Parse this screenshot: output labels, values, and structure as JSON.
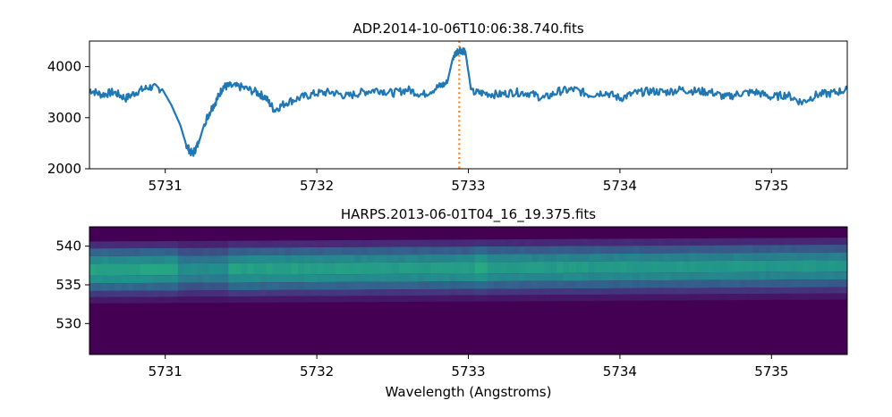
{
  "figure": {
    "xlabel": "Wavelength (Angstroms)"
  },
  "colors": {
    "line": "#1f77b4",
    "marker": "#ff7f0e",
    "bg_dark": "#440154",
    "heat_low": "#46337e",
    "heat_mid": "#31688e",
    "heat_high": "#21918c",
    "heat_peak": "#29af7f"
  },
  "chart_data": [
    {
      "type": "line",
      "title": "ADP.2014-10-06T10:06:38.740.fits",
      "xlabel": "",
      "ylabel": "",
      "xlim": [
        5730.5,
        5735.5
      ],
      "ylim": [
        2000,
        4500
      ],
      "xticks": [
        5731,
        5732,
        5733,
        5734,
        5735
      ],
      "yticks": [
        2000,
        3000,
        4000
      ],
      "vline_x": 5732.94,
      "series": [
        {
          "name": "flux",
          "x": [
            5730.5,
            5730.58,
            5730.66,
            5730.74,
            5730.82,
            5730.9,
            5730.98,
            5731.04,
            5731.1,
            5731.14,
            5731.18,
            5731.22,
            5731.26,
            5731.3,
            5731.34,
            5731.38,
            5731.42,
            5731.5,
            5731.6,
            5731.66,
            5731.72,
            5731.8,
            5731.9,
            5732.0,
            5732.1,
            5732.2,
            5732.3,
            5732.4,
            5732.5,
            5732.6,
            5732.7,
            5732.8,
            5732.86,
            5732.9,
            5732.94,
            5732.98,
            5733.02,
            5733.1,
            5733.2,
            5733.3,
            5733.4,
            5733.5,
            5733.6,
            5733.7,
            5733.8,
            5733.9,
            5734.0,
            5734.1,
            5734.2,
            5734.3,
            5734.4,
            5734.5,
            5734.6,
            5734.7,
            5734.8,
            5734.9,
            5735.0,
            5735.1,
            5735.2,
            5735.3,
            5735.4,
            5735.5
          ],
          "y": [
            3550,
            3450,
            3500,
            3380,
            3520,
            3600,
            3560,
            3250,
            2850,
            2450,
            2280,
            2500,
            2900,
            3150,
            3350,
            3600,
            3620,
            3600,
            3500,
            3400,
            3150,
            3300,
            3400,
            3480,
            3500,
            3420,
            3500,
            3550,
            3480,
            3550,
            3450,
            3600,
            3680,
            4200,
            4340,
            4300,
            3500,
            3480,
            3450,
            3500,
            3480,
            3380,
            3520,
            3550,
            3450,
            3500,
            3380,
            3480,
            3520,
            3500,
            3550,
            3520,
            3500,
            3400,
            3480,
            3500,
            3400,
            3450,
            3300,
            3450,
            3480,
            3550
          ]
        }
      ]
    },
    {
      "type": "heatmap",
      "title": "HARPS.2013-06-01T04_16_19.375.fits",
      "xlabel": "Wavelength (Angstroms)",
      "ylabel": "",
      "xlim": [
        5730.5,
        5735.5
      ],
      "ylim": [
        526,
        542.5
      ],
      "xticks": [
        5731,
        5732,
        5733,
        5734,
        5735
      ],
      "yticks": [
        530,
        535,
        540
      ],
      "rows": [
        {
          "y_from": 539.7,
          "y_to": 540.6,
          "intensity": 0.22
        },
        {
          "y_from": 538.7,
          "y_to": 539.7,
          "intensity": 0.48
        },
        {
          "y_from": 537.7,
          "y_to": 538.7,
          "intensity": 0.72
        },
        {
          "y_from": 536.2,
          "y_to": 537.7,
          "intensity": 0.9
        },
        {
          "y_from": 535.2,
          "y_to": 536.2,
          "intensity": 0.75
        },
        {
          "y_from": 534.2,
          "y_to": 535.2,
          "intensity": 0.5
        },
        {
          "y_from": 533.4,
          "y_to": 534.2,
          "intensity": 0.28
        },
        {
          "y_from": 532.6,
          "y_to": 533.4,
          "intensity": 0.12
        }
      ],
      "dark_features": [
        5731.15,
        5731.25,
        5731.35
      ],
      "bright_feature": 5733.08,
      "tilt_fraction": 0.25
    }
  ]
}
